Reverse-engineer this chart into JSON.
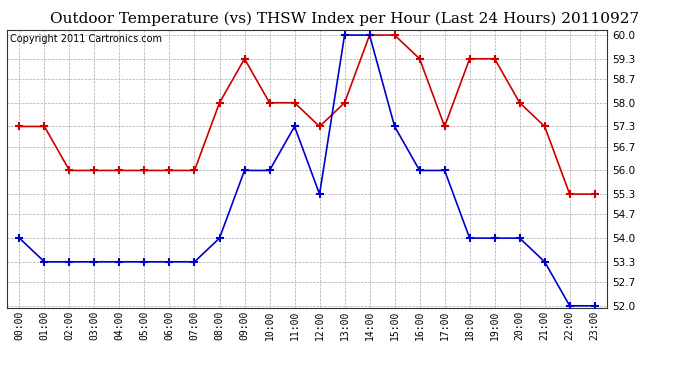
{
  "title": "Outdoor Temperature (vs) THSW Index per Hour (Last 24 Hours) 20110927",
  "copyright": "Copyright 2011 Cartronics.com",
  "hours": [
    "00:00",
    "01:00",
    "02:00",
    "03:00",
    "04:00",
    "05:00",
    "06:00",
    "07:00",
    "08:00",
    "09:00",
    "10:00",
    "11:00",
    "12:00",
    "13:00",
    "14:00",
    "15:00",
    "16:00",
    "17:00",
    "18:00",
    "19:00",
    "20:00",
    "21:00",
    "22:00",
    "23:00"
  ],
  "temp_blue": [
    54.0,
    53.3,
    53.3,
    53.3,
    53.3,
    53.3,
    53.3,
    53.3,
    54.0,
    56.0,
    56.0,
    57.3,
    55.3,
    60.0,
    60.0,
    57.3,
    56.0,
    56.0,
    54.0,
    54.0,
    54.0,
    53.3,
    52.0,
    52.0
  ],
  "thsw_red": [
    57.3,
    57.3,
    56.0,
    56.0,
    56.0,
    56.0,
    56.0,
    56.0,
    58.0,
    59.3,
    58.0,
    58.0,
    57.3,
    58.0,
    60.0,
    60.0,
    59.3,
    57.3,
    59.3,
    59.3,
    58.0,
    57.3,
    55.3,
    55.3
  ],
  "ylim_min": 52.0,
  "ylim_max": 60.0,
  "yticks": [
    52.0,
    52.7,
    53.3,
    54.0,
    54.7,
    55.3,
    56.0,
    56.7,
    57.3,
    58.0,
    58.7,
    59.3,
    60.0
  ],
  "bg_color": "#ffffff",
  "plot_bg_color": "#ffffff",
  "grid_color": "#aaaaaa",
  "blue_color": "#0000cc",
  "red_color": "#cc0000",
  "title_fontsize": 11,
  "copyright_fontsize": 7
}
